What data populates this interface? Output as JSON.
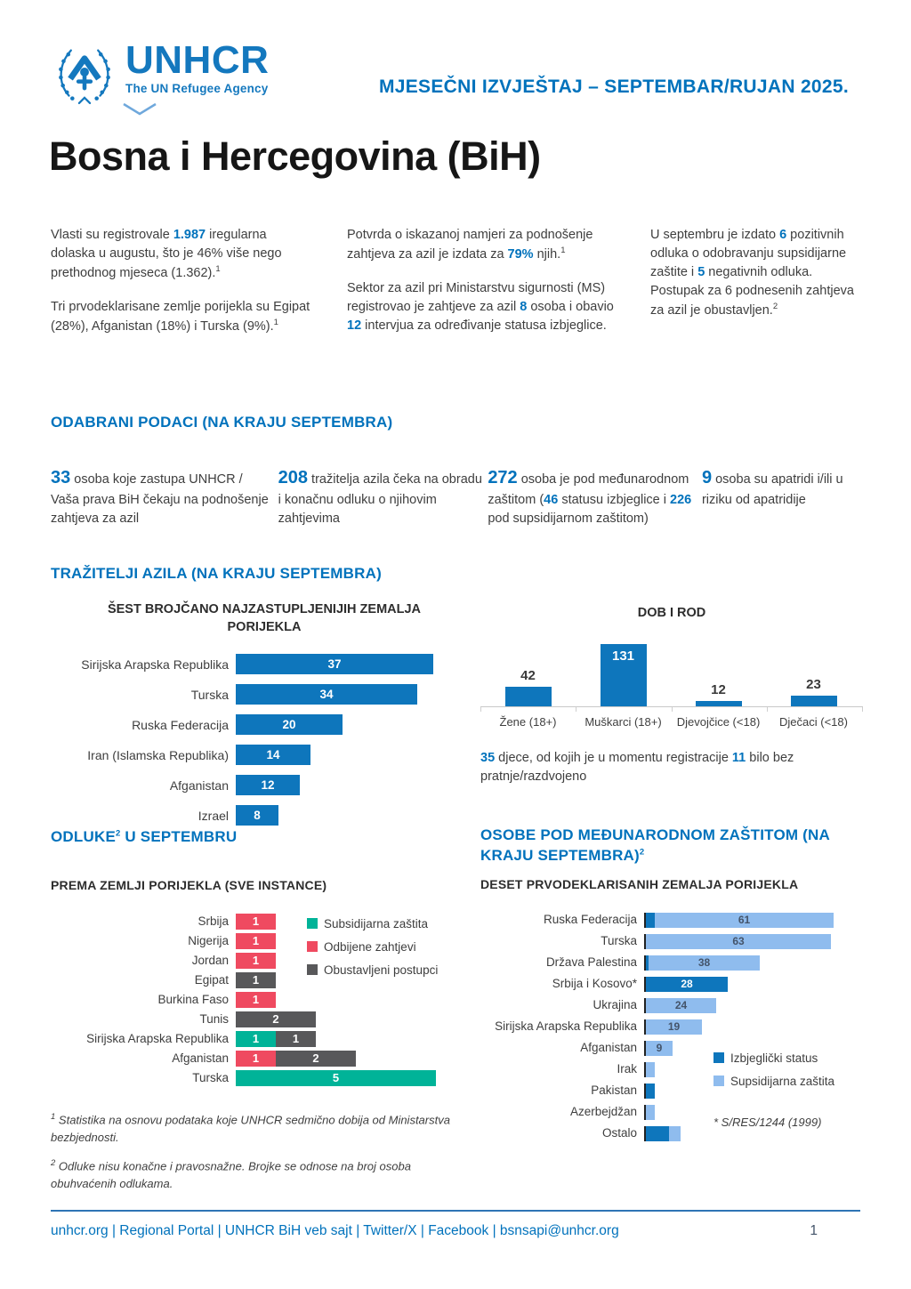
{
  "header": {
    "logo_wordmark": "UNHCR",
    "logo_tagline": "The UN Refugee Agency",
    "report_title": "MJESEČNI IZVJEŠTAJ – SEPTEMBAR/RUJAN 2025.",
    "page_title": "Bosna i Hercegovina (BiH)"
  },
  "colors": {
    "unhcr_blue": "#0072BC",
    "bar_blue": "#0E76BC",
    "light_blue": "#8FBCEE",
    "teal": "#00B398",
    "red": "#EF4A60",
    "dark_gray": "#58585A"
  },
  "intro": {
    "col1": [
      [
        {
          "t": "Vlasti su registrovale "
        },
        {
          "t": "1.987",
          "c": "hl"
        },
        {
          "t": " iregularna dolaska u augustu, što je 46% više nego prethodnog mjeseca (1.362).",
          "c": ""
        },
        {
          "t": "1",
          "c": "sup"
        }
      ],
      [
        {
          "t": "Tri prvodeklarisane zemlje porijekla su Egipat (28%), Afganistan (18%) i Turska (9%).",
          "c": ""
        },
        {
          "t": "1",
          "c": "sup"
        }
      ]
    ],
    "col2": [
      [
        {
          "t": "Potvrda o iskazanoj namjeri za podnošenje zahtjeva za azil je izdata za "
        },
        {
          "t": "79%",
          "c": "hl"
        },
        {
          "t": " njih.",
          "c": ""
        },
        {
          "t": "1",
          "c": "sup"
        }
      ],
      [
        {
          "t": "Sektor za azil pri Ministarstvu sigurnosti (MS) registrovao je zahtjeve za azil "
        },
        {
          "t": "8",
          "c": "hl"
        },
        {
          "t": " osoba i obavio "
        },
        {
          "t": "12",
          "c": "hl"
        },
        {
          "t": " intervjua za određivanje statusa izbjeglice.",
          "c": ""
        }
      ]
    ],
    "col3": [
      [
        {
          "t": "U septembru je izdato "
        },
        {
          "t": "6",
          "c": "hl"
        },
        {
          "t": " pozitivnih odluka o odobravanju supsidijarne zaštite i "
        },
        {
          "t": "5",
          "c": "hl"
        },
        {
          "t": " negativnih odluka. Postupak za 6 podnesenih zahtjeva za azil je obustavljen.",
          "c": ""
        },
        {
          "t": "2",
          "c": "sup"
        }
      ]
    ]
  },
  "selected_data": {
    "heading": "ODABRANI PODACI (NA KRAJU SEPTEMBRA)",
    "stats": [
      [
        {
          "t": "33",
          "c": "big"
        },
        {
          "t": " osoba koje zastupa UNHCR / Vaša prava BiH čekaju na podnošenje zahtjeva za azil",
          "c": ""
        }
      ],
      [
        {
          "t": "208",
          "c": "big"
        },
        {
          "t": " tražitelja azila čeka na obradu i konačnu odluku o njihovim zahtjevima",
          "c": ""
        }
      ],
      [
        {
          "t": "272",
          "c": "big"
        },
        {
          "t": " osoba je pod međunarodnom zaštitom (",
          "c": ""
        },
        {
          "t": "46",
          "c": "hl"
        },
        {
          "t": " statusu izbjeglice i "
        },
        {
          "t": "226",
          "c": "hl"
        },
        {
          "t": " pod supsidijarnom zaštitom)",
          "c": ""
        }
      ],
      [
        {
          "t": "9",
          "c": "big"
        },
        {
          "t": " osoba su apatridi i/ili u riziku od apatridije",
          "c": ""
        }
      ]
    ]
  },
  "asylum_section": {
    "heading": "TRAŽITELJI AZILA (NA KRAJU SEPTEMBRA)",
    "note": [
      {
        "t": "35",
        "c": "hl"
      },
      {
        "t": " djece, od kojih je u momentu registracije "
      },
      {
        "t": "11",
        "c": "hl"
      },
      {
        "t": " bilo bez pratnje/razdvojeno",
        "c": ""
      }
    ]
  },
  "decisions_section": {
    "heading": [
      {
        "t": "ODLUKE",
        "c": ""
      },
      {
        "t": "2",
        "c": "sup"
      },
      {
        "t": " U SEPTEMBRU",
        "c": ""
      }
    ],
    "footnotes": [
      [
        {
          "t": "1",
          "c": "sup"
        },
        {
          "t": " Statistika na osnovu podataka koje UNHCR sedmično dobija od Ministarstva bezbjednosti.",
          "c": ""
        }
      ],
      [
        {
          "t": "2",
          "c": "sup"
        },
        {
          "t": " Odluke nisu konačne i pravosnažne. Brojke se odnose na broj osoba obuhvaćenih odlukama.",
          "c": ""
        }
      ]
    ]
  },
  "protection_section": {
    "heading": [
      {
        "t": "OSOBE POD MEĐUNARODNOM ZAŠTITOM (NA KRAJU SEPTEMBRA)",
        "c": ""
      },
      {
        "t": "2",
        "c": "sup"
      }
    ],
    "note": "* S/RES/1244 (1999)"
  },
  "chart_data": [
    {
      "id": "origin_countries",
      "type": "bar",
      "orientation": "horizontal",
      "title": "ŠEST BROJČANO NAJZASTUPLJENIJIH ZEMALJA PORIJEKLA",
      "categories": [
        "Sirijska Arapska Republika",
        "Turska",
        "Ruska Federacija",
        "Iran (Islamska Republika)",
        "Afganistan",
        "Izrael"
      ],
      "values": [
        37,
        34,
        20,
        14,
        12,
        8
      ],
      "bar_color": "#0E76BC",
      "value_label_color": "#FFFFFF",
      "xlim": [
        0,
        37
      ],
      "grid": false
    },
    {
      "id": "age_gender",
      "type": "bar",
      "orientation": "vertical",
      "title": "DOB I ROD",
      "categories": [
        "Žene (18+)",
        "Muškarci (18+)",
        "Djevojčice (<18)",
        "Dječaci (<18)"
      ],
      "values": [
        42,
        131,
        12,
        23
      ],
      "bar_color": "#0E76BC",
      "ylim": [
        0,
        131
      ],
      "grid": false
    },
    {
      "id": "decisions_by_country",
      "type": "bar",
      "orientation": "horizontal",
      "stacked": true,
      "title": "PREMA ZEMLJI PORIJEKLA (SVE INSTANCE)",
      "categories": [
        "Srbija",
        "Nigerija",
        "Jordan",
        "Egipat",
        "Burkina Faso",
        "Tunis",
        "Sirijska Arapska Republika",
        "Afganistan",
        "Turska"
      ],
      "series": [
        {
          "name": "Subsidijarna zaštita",
          "color": "#00B398",
          "value_label_color": "#FFFFFF",
          "values": [
            0,
            0,
            0,
            0,
            0,
            0,
            1,
            0,
            5
          ]
        },
        {
          "name": "Odbijene zahtjevi",
          "color": "#EF4A60",
          "value_label_color": "#FFFFFF",
          "values": [
            1,
            1,
            1,
            0,
            1,
            0,
            0,
            1,
            0
          ]
        },
        {
          "name": "Obustavljeni postupci",
          "color": "#58585A",
          "value_label_color": "#FFFFFF",
          "values": [
            0,
            0,
            0,
            1,
            0,
            2,
            1,
            2,
            0
          ]
        }
      ],
      "legend_position": "top-right",
      "xlim": [
        0,
        5
      ],
      "grid": false
    },
    {
      "id": "international_protection",
      "type": "bar",
      "orientation": "horizontal",
      "stacked": true,
      "title": "DESET PRVODEKLARISANIH ZEMALJA PORIJEKLA",
      "categories": [
        "Ruska Federacija",
        "Turska",
        "Država Palestina",
        "Srbija i Kosovo*",
        "Ukrajina",
        "Sirijska Arapska Republika",
        "Afganistan",
        "Irak",
        "Pakistan",
        "Azerbejdžan",
        "Ostalo"
      ],
      "series": [
        {
          "name": "Izbjeglički status",
          "color": "#0E76BC",
          "value_label_color": "#FFFFFF",
          "values": [
            3,
            0,
            1,
            28,
            0,
            0,
            0,
            0,
            3,
            0,
            8
          ]
        },
        {
          "name": "Supsidijarna zaštita",
          "color": "#8FBCEE",
          "value_label_color": "#44546A",
          "values": [
            61,
            63,
            38,
            0,
            24,
            19,
            9,
            3,
            0,
            3,
            4
          ]
        }
      ],
      "value_label_min": 9,
      "legend_position": "right",
      "xlim": [
        0,
        64
      ],
      "grid": false
    }
  ],
  "footer": {
    "links": [
      "unhcr.org",
      "Regional Portal",
      "UNHCR BiH veb sajt",
      "Twitter/X",
      "Facebook",
      "bsnsapi@unhcr.org"
    ],
    "separator": " | ",
    "page": "1"
  }
}
